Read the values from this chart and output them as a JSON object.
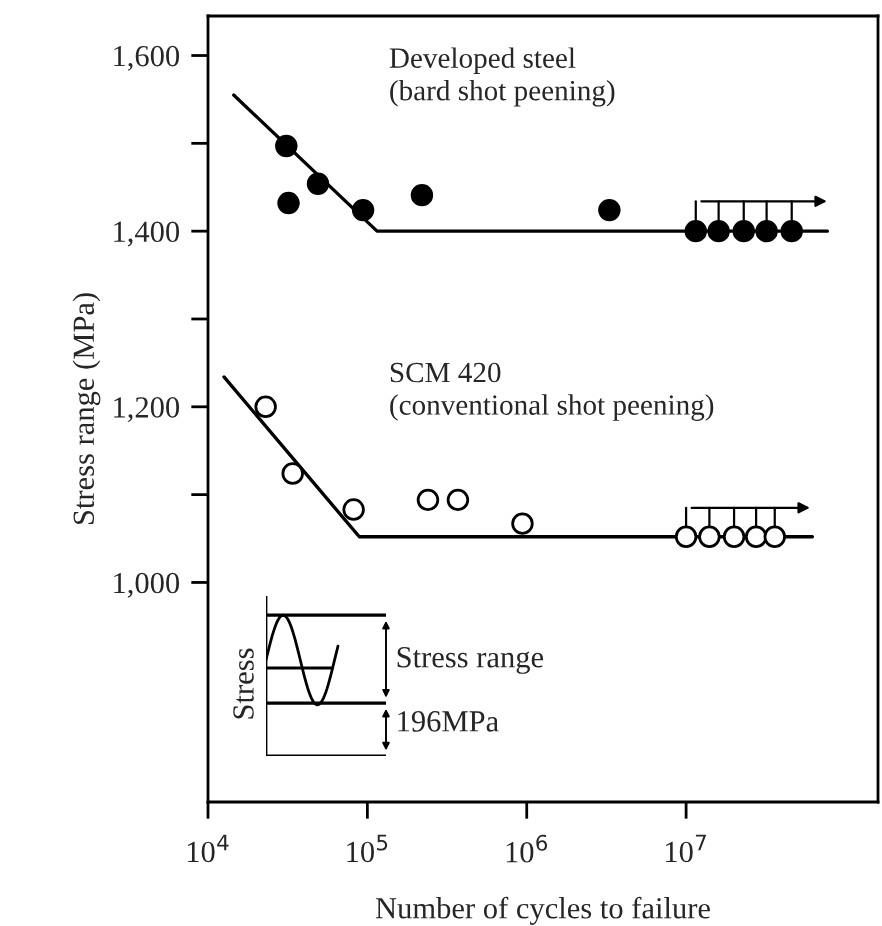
{
  "chart_data": {
    "type": "scatter",
    "xlabel": "Number of cycles to failure",
    "ylabel": "Stress range (MPa)",
    "log": "x",
    "grid": false,
    "legend": false,
    "xlim": [
      10000,
      160000000
    ],
    "xticks": [
      {
        "value": 10000,
        "label": "10$^{4}$"
      },
      {
        "value": 100000,
        "label": "10$^{5}$"
      },
      {
        "value": 1000000,
        "label": "10$^{6}$"
      },
      {
        "value": 10000000,
        "label": "10$^{7}$"
      }
    ],
    "ylim": [
      750,
      1645
    ],
    "yticks": [
      {
        "value": 1000,
        "label": "1,000"
      },
      {
        "value": 1100,
        "label": null
      },
      {
        "value": 1200,
        "label": "1,200"
      },
      {
        "value": 1300,
        "label": null
      },
      {
        "value": 1400,
        "label": "1,400"
      },
      {
        "value": 1500,
        "label": null
      },
      {
        "value": 1600,
        "label": "1,600"
      }
    ],
    "series": [
      {
        "name": "Developed steel\n(bard shot peening)",
        "marker": "circle",
        "color": "#000000",
        "x": [
          31000,
          32000,
          49000,
          94000,
          220000,
          3300000,
          11500000,
          16000000,
          23000000,
          32000000,
          46000000
        ],
        "values": [
          1497,
          1432,
          1454,
          1424,
          1441,
          1424,
          1400,
          1400,
          1400,
          1400,
          1400
        ]
      },
      {
        "type": "line",
        "color": "#000000",
        "x": [
          14500,
          115000,
          77000000
        ],
        "values": [
          1555,
          1400,
          1400
        ]
      },
      {
        "name": "SCM 420\n(conventional shot peening)",
        "marker": "circle",
        "color": "#ffffff",
        "x": [
          23000,
          34000,
          82000,
          240000,
          370000,
          940000,
          10000000,
          14000000,
          20000000,
          27500000,
          36000000
        ],
        "values": [
          1200,
          1124,
          1083,
          1094,
          1094,
          1067,
          1052,
          1052,
          1052,
          1052,
          1052
        ]
      },
      {
        "type": "line",
        "color": "#000000",
        "x": [
          12600,
          89000,
          62000000
        ],
        "values": [
          1234,
          1052,
          1052
        ]
      }
    ],
    "annotations": [
      "Stress",
      "Stress range",
      "196MPa"
    ]
  }
}
